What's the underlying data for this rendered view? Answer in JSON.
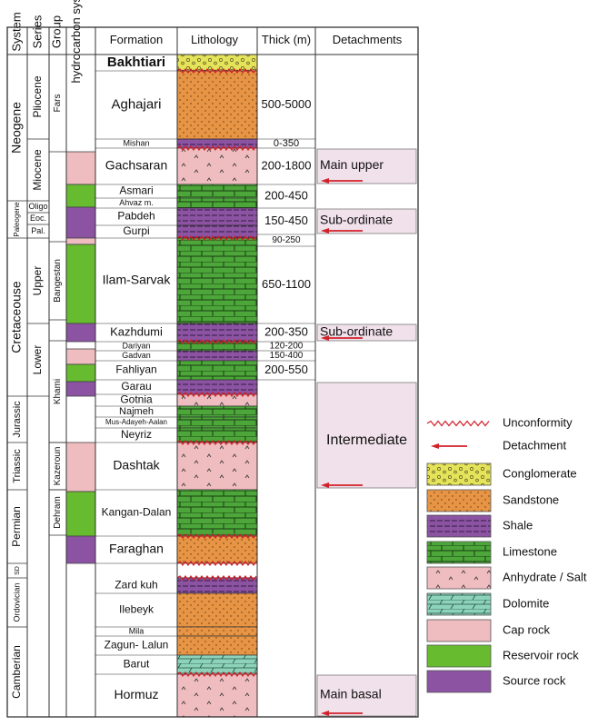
{
  "headers": {
    "system": "System",
    "series": "Series",
    "group": "Group",
    "hydro": "hydrocarbon system",
    "formation": "Formation",
    "lithology": "Lithology",
    "thick": "Thick (m)",
    "detachments": "Detachments"
  },
  "systems": [
    {
      "label": "Neogene",
      "top": 60,
      "bottom": 221,
      "size": 14
    },
    {
      "label": "Paleogene",
      "top": 221,
      "bottom": 262,
      "size": 8
    },
    {
      "label": "Cretaceouse",
      "top": 262,
      "bottom": 436,
      "size": 14
    },
    {
      "label": "Jurassic",
      "top": 436,
      "bottom": 487,
      "size": 11
    },
    {
      "label": "Triassic",
      "top": 487,
      "bottom": 539,
      "size": 11
    },
    {
      "label": "Permian",
      "top": 539,
      "bottom": 620,
      "size": 12
    },
    {
      "label": "SD",
      "top": 620,
      "bottom": 636,
      "size": 7
    },
    {
      "label": "Ordovician",
      "top": 636,
      "bottom": 690,
      "size": 9
    },
    {
      "label": "Camberian",
      "top": 690,
      "bottom": 789,
      "size": 12
    }
  ],
  "series": [
    {
      "label": "Pliocene",
      "top": 60,
      "bottom": 153,
      "size": 12
    },
    {
      "label": "Miocene",
      "top": 153,
      "bottom": 221,
      "size": 12
    },
    {
      "label": "Oligo",
      "top": 221,
      "bottom": 234,
      "size": 9,
      "horizontal": true
    },
    {
      "label": "Eoc.",
      "top": 234,
      "bottom": 247,
      "size": 9,
      "horizontal": true
    },
    {
      "label": "Pal.",
      "top": 247,
      "bottom": 262,
      "size": 9,
      "horizontal": true
    },
    {
      "label": "Upper",
      "top": 262,
      "bottom": 356,
      "size": 12
    },
    {
      "label": "Lower",
      "top": 356,
      "bottom": 436,
      "size": 12
    }
  ],
  "groups": [
    {
      "label": "Fars",
      "top": 60,
      "bottom": 167,
      "size": 10
    },
    {
      "label": "Bangestan",
      "top": 266,
      "bottom": 352,
      "size": 10
    },
    {
      "label": "Khami",
      "top": 375,
      "bottom": 487,
      "size": 10
    },
    {
      "label": "Kazeroun",
      "top": 487,
      "bottom": 539,
      "size": 10
    },
    {
      "label": "Dehram",
      "top": 539,
      "bottom": 589,
      "size": 10
    }
  ],
  "hydro_blocks": [
    {
      "role": "cap",
      "top": 167,
      "bottom": 203
    },
    {
      "role": "reservoir",
      "top": 203,
      "bottom": 228
    },
    {
      "role": "source",
      "top": 228,
      "bottom": 262
    },
    {
      "role": "cap",
      "top": 262,
      "bottom": 269
    },
    {
      "role": "reservoir",
      "top": 269,
      "bottom": 356
    },
    {
      "role": "source",
      "top": 356,
      "bottom": 376
    },
    {
      "role": "cap",
      "top": 384,
      "bottom": 401
    },
    {
      "role": "reservoir",
      "top": 401,
      "bottom": 420
    },
    {
      "role": "source",
      "top": 420,
      "bottom": 436
    },
    {
      "role": "cap",
      "top": 487,
      "bottom": 541
    },
    {
      "role": "reservoir",
      "top": 541,
      "bottom": 590
    },
    {
      "role": "source",
      "top": 590,
      "bottom": 620
    }
  ],
  "formations": [
    {
      "label": "Bakhtiari",
      "top": 60,
      "bottom": 78,
      "size": 15,
      "bold": true
    },
    {
      "label": "Aghajari",
      "top": 78,
      "bottom": 153,
      "size": 15
    },
    {
      "label": "Mishan",
      "top": 153,
      "bottom": 163,
      "size": 9
    },
    {
      "label": "Gachsaran",
      "top": 163,
      "bottom": 203,
      "size": 14
    },
    {
      "label": "Asmari",
      "top": 203,
      "bottom": 218,
      "size": 12
    },
    {
      "label": "Ahvaz m.",
      "top": 218,
      "bottom": 229,
      "size": 9
    },
    {
      "label": "Pabdeh",
      "top": 229,
      "bottom": 248,
      "size": 12
    },
    {
      "label": "Gurpi",
      "top": 248,
      "bottom": 262,
      "size": 12
    },
    {
      "label": "Ilam-Sarvak",
      "top": 262,
      "bottom": 356,
      "size": 14
    },
    {
      "label": "Kazhdumi",
      "top": 356,
      "bottom": 376,
      "size": 13
    },
    {
      "label": "Dariyan",
      "top": 376,
      "bottom": 386,
      "size": 9
    },
    {
      "label": "Gadvan",
      "top": 386,
      "bottom": 397,
      "size": 9
    },
    {
      "label": "Fahliyan",
      "top": 397,
      "bottom": 418,
      "size": 12
    },
    {
      "label": "Garau",
      "top": 418,
      "bottom": 434,
      "size": 12
    },
    {
      "label": "Gotnia",
      "top": 434,
      "bottom": 447,
      "size": 12
    },
    {
      "label": "Najmeh",
      "top": 447,
      "bottom": 459,
      "size": 11
    },
    {
      "label": "Mus-Adayeh-Aalan",
      "top": 459,
      "bottom": 471,
      "size": 8
    },
    {
      "label": "Neyriz",
      "top": 471,
      "bottom": 487,
      "size": 12
    },
    {
      "label": "Dashtak",
      "top": 487,
      "bottom": 539,
      "size": 14
    },
    {
      "label": "Kangan-Dalan",
      "top": 539,
      "bottom": 590,
      "size": 12
    },
    {
      "label": "Faraghan",
      "top": 590,
      "bottom": 620,
      "size": 14
    },
    {
      "label": "Zard kuh",
      "top": 636,
      "bottom": 653,
      "size": 12
    },
    {
      "label": "Ilebeyk",
      "top": 653,
      "bottom": 690,
      "size": 12
    },
    {
      "label": "Mila",
      "top": 690,
      "bottom": 700,
      "size": 9
    },
    {
      "label": "Zagun- Lalun",
      "top": 700,
      "bottom": 721,
      "size": 12
    },
    {
      "label": "Barut",
      "top": 721,
      "bottom": 742,
      "size": 12
    },
    {
      "label": "Hormuz",
      "top": 742,
      "bottom": 789,
      "size": 14
    }
  ],
  "lithology_units": [
    {
      "type": "conglomerate",
      "top": 60,
      "bottom": 78
    },
    {
      "type": "sandstone",
      "top": 78,
      "bottom": 153
    },
    {
      "type": "shale",
      "top": 153,
      "bottom": 163
    },
    {
      "type": "anhydrite",
      "top": 163,
      "bottom": 203
    },
    {
      "type": "limestone",
      "top": 203,
      "bottom": 218
    },
    {
      "type": "limestone",
      "top": 218,
      "bottom": 229
    },
    {
      "type": "shale",
      "top": 229,
      "bottom": 248
    },
    {
      "type": "shale",
      "top": 248,
      "bottom": 262
    },
    {
      "type": "limestone",
      "top": 262,
      "bottom": 356
    },
    {
      "type": "shale",
      "top": 356,
      "bottom": 376
    },
    {
      "type": "limestone",
      "top": 376,
      "bottom": 386
    },
    {
      "type": "shale",
      "top": 386,
      "bottom": 397
    },
    {
      "type": "limestone",
      "top": 397,
      "bottom": 418
    },
    {
      "type": "shale",
      "top": 418,
      "bottom": 434
    },
    {
      "type": "anhydrite",
      "top": 434,
      "bottom": 447
    },
    {
      "type": "limestone",
      "top": 447,
      "bottom": 459
    },
    {
      "type": "limestone",
      "top": 459,
      "bottom": 471
    },
    {
      "type": "limestone",
      "top": 471,
      "bottom": 487
    },
    {
      "type": "anhydrite",
      "top": 487,
      "bottom": 539
    },
    {
      "type": "limestone",
      "top": 539,
      "bottom": 590
    },
    {
      "type": "sandstone",
      "top": 590,
      "bottom": 620
    },
    {
      "type": "blank",
      "top": 620,
      "bottom": 636
    },
    {
      "type": "shale",
      "top": 636,
      "bottom": 653
    },
    {
      "type": "sandstone",
      "top": 653,
      "bottom": 690
    },
    {
      "type": "sandstone",
      "top": 690,
      "bottom": 700
    },
    {
      "type": "sandstone",
      "top": 700,
      "bottom": 721
    },
    {
      "type": "dolomite",
      "top": 721,
      "bottom": 742
    },
    {
      "type": "anhydrite",
      "top": 742,
      "bottom": 789
    }
  ],
  "unconformities": [
    78,
    163,
    262,
    376,
    434,
    487,
    590,
    620,
    636,
    742
  ],
  "thickness": [
    {
      "label": "500-5000",
      "top": 78,
      "bottom": 153,
      "size": 13
    },
    {
      "label": "0-350",
      "top": 153,
      "bottom": 163,
      "size": 11
    },
    {
      "label": "200-1800",
      "top": 163,
      "bottom": 203,
      "size": 13
    },
    {
      "label": "200-450",
      "top": 203,
      "bottom": 229,
      "size": 13
    },
    {
      "label": "150-450",
      "top": 229,
      "bottom": 258,
      "size": 13
    },
    {
      "label": "90-250",
      "top": 258,
      "bottom": 271,
      "size": 10
    },
    {
      "label": "650-1100",
      "top": 271,
      "bottom": 356,
      "size": 13
    },
    {
      "label": "200-350",
      "top": 356,
      "bottom": 376,
      "size": 13
    },
    {
      "label": "120-200",
      "top": 376,
      "bottom": 386,
      "size": 10
    },
    {
      "label": "150-400",
      "top": 386,
      "bottom": 397,
      "size": 10
    },
    {
      "label": "200-550",
      "top": 397,
      "bottom": 418,
      "size": 13
    }
  ],
  "detachments": [
    {
      "label": "Main upper",
      "top": 163,
      "bottom": 203
    },
    {
      "label": "Sub-ordinate",
      "top": 229,
      "bottom": 258
    },
    {
      "label": "Sub-ordinate",
      "top": 356,
      "bottom": 376
    },
    {
      "label": "Intermediate",
      "top": 420,
      "bottom": 538
    },
    {
      "label": "Main basal",
      "top": 742,
      "bottom": 789
    }
  ],
  "legend": [
    {
      "type": "unconformity",
      "label": "Unconformity"
    },
    {
      "type": "detachment",
      "label": "Detachment"
    },
    {
      "type": "conglomerate",
      "label": "Conglomerate"
    },
    {
      "type": "sandstone",
      "label": "Sandstone"
    },
    {
      "type": "shale",
      "label": "Shale"
    },
    {
      "type": "limestone",
      "label": "Limestone"
    },
    {
      "type": "anhydrite",
      "label": "Anhydrate / Salt"
    },
    {
      "type": "dolomite",
      "label": "Dolomite"
    },
    {
      "type": "cap",
      "label": "Cap rock"
    },
    {
      "type": "reservoir",
      "label": "Reservoir rock"
    },
    {
      "type": "source",
      "label": "Source rock"
    }
  ],
  "colors": {
    "conglomerate": "#e5e35a",
    "sandstone": "#e79545",
    "shale": "#8c53a3",
    "limestone": "#4ca63a",
    "anhydrite": "#efbcc0",
    "dolomite": "#8dd3bb",
    "cap": "#efbcc0",
    "reservoir": "#66bb2f",
    "source": "#8c53a3",
    "detachment_box": "#f1e1ea",
    "arrow": "#d1212a",
    "unconformity": "#d1212a"
  }
}
